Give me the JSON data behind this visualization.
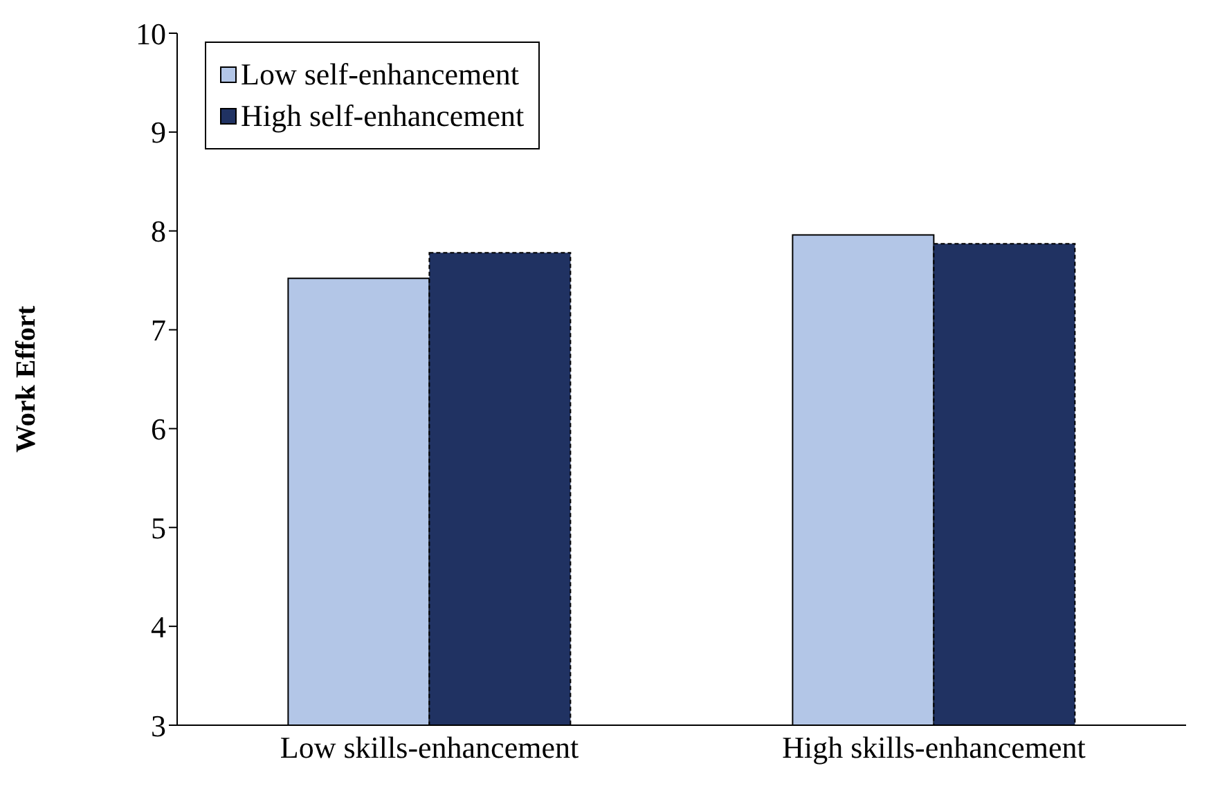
{
  "chart_data": {
    "type": "bar",
    "ylabel": "Work Effort",
    "categories": [
      "Low skills-enhancement",
      "High skills-enhancement"
    ],
    "series": [
      {
        "name": "Low self-enhancement",
        "color": "#b3c6e7",
        "values": [
          7.52,
          7.96
        ]
      },
      {
        "name": "High self-enhancement",
        "color": "#203262",
        "values": [
          7.78,
          7.87
        ]
      }
    ],
    "ylim": [
      3,
      10
    ],
    "yticks": [
      3,
      4,
      5,
      6,
      7,
      8,
      9,
      10
    ],
    "legend": "top left"
  }
}
